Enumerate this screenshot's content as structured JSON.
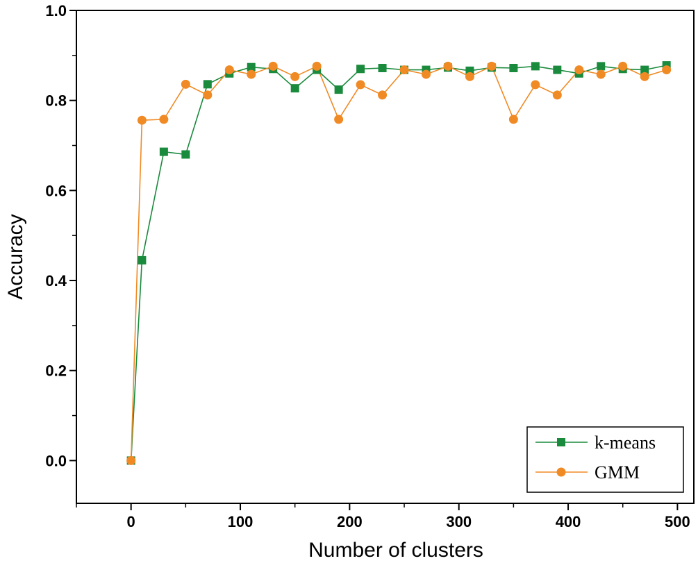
{
  "chart_data": {
    "type": "line",
    "title": "",
    "xlabel": "Number of clusters",
    "ylabel": "Accuracy",
    "xlim": [
      -50,
      515
    ],
    "ylim": [
      -0.095,
      1.0
    ],
    "xticks": [
      0,
      100,
      200,
      300,
      400,
      500
    ],
    "xtick_labels": [
      "0",
      "100",
      "200",
      "300",
      "400",
      "500"
    ],
    "yticks": [
      0.0,
      0.2,
      0.4,
      0.6,
      0.8,
      1.0
    ],
    "ytick_labels": [
      "0.0",
      "0.2",
      "0.4",
      "0.6",
      "0.8",
      "1.0"
    ],
    "grid": false,
    "legend_position": "bottom-right",
    "series": [
      {
        "name": "k-means",
        "color": "#1a8a3c",
        "marker": "square",
        "x": [
          0,
          10,
          30,
          50,
          70,
          90,
          110,
          130,
          150,
          170,
          190,
          210,
          230,
          250,
          270,
          290,
          310,
          330,
          350,
          370,
          390,
          410,
          430,
          450,
          470,
          490
        ],
        "y": [
          0.0,
          0.445,
          0.686,
          0.68,
          0.836,
          0.86,
          0.874,
          0.87,
          0.827,
          0.868,
          0.824,
          0.87,
          0.872,
          0.868,
          0.868,
          0.873,
          0.866,
          0.873,
          0.872,
          0.876,
          0.868,
          0.86,
          0.876,
          0.87,
          0.868,
          0.878
        ]
      },
      {
        "name": "GMM",
        "color": "#f08a24",
        "marker": "circle",
        "x": [
          0,
          10,
          30,
          50,
          70,
          90,
          110,
          130,
          150,
          170,
          190,
          210,
          230,
          250,
          270,
          290,
          310,
          330,
          350,
          370,
          390,
          410,
          430,
          450,
          470,
          490
        ],
        "y": [
          0.0,
          0.756,
          0.758,
          0.836,
          0.812,
          0.868,
          0.858,
          0.876,
          0.853,
          0.876,
          0.758,
          0.835,
          0.812,
          0.868,
          0.858,
          0.876,
          0.853,
          0.876,
          0.758,
          0.835,
          0.812,
          0.868,
          0.858,
          0.876,
          0.853,
          0.868
        ]
      }
    ]
  }
}
